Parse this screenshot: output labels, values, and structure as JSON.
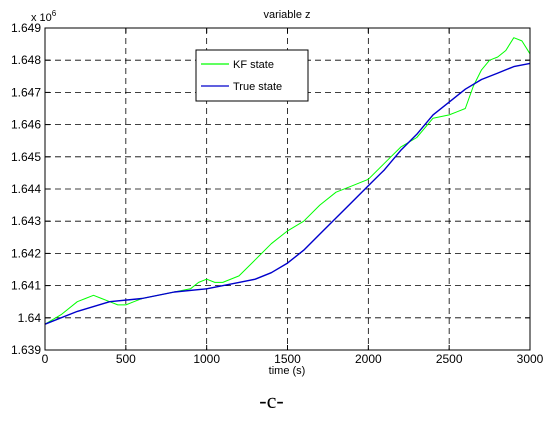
{
  "chart_data": {
    "type": "line",
    "title": "variable z",
    "xlabel": "time (s)",
    "ylabel": "",
    "y_multiplier": "x 10",
    "y_multiplier_exponent": "6",
    "xlim": [
      0,
      3000
    ],
    "ylim": [
      1.639,
      1.649
    ],
    "x_ticks": [
      0,
      500,
      1000,
      1500,
      2000,
      2500,
      3000
    ],
    "x_tick_labels": [
      "0",
      "500",
      "1000",
      "1500",
      "2000",
      "2500",
      "3000"
    ],
    "y_ticks": [
      1.639,
      1.64,
      1.641,
      1.642,
      1.643,
      1.644,
      1.645,
      1.646,
      1.647,
      1.648,
      1.649
    ],
    "y_tick_labels": [
      "1.639",
      "1.64",
      "1.641",
      "1.642",
      "1.643",
      "1.644",
      "1.645",
      "1.646",
      "1.647",
      "1.648",
      "1.649"
    ],
    "grid": true,
    "legend_position": "top-center",
    "series": [
      {
        "name": "KF state",
        "color": "#00ff00",
        "x": [
          0,
          100,
          200,
          250,
          300,
          350,
          400,
          450,
          500,
          550,
          600,
          700,
          800,
          900,
          950,
          1000,
          1050,
          1100,
          1200,
          1300,
          1400,
          1500,
          1600,
          1700,
          1800,
          1900,
          2000,
          2100,
          2200,
          2300,
          2400,
          2500,
          2550,
          2600,
          2650,
          2700,
          2750,
          2800,
          2850,
          2900,
          2950,
          3000
        ],
        "y": [
          1.6398,
          1.6401,
          1.6405,
          1.6406,
          1.6407,
          1.6406,
          1.6405,
          1.6404,
          1.6404,
          1.6405,
          1.6406,
          1.6407,
          1.6408,
          1.6409,
          1.6411,
          1.6412,
          1.6411,
          1.6411,
          1.6413,
          1.6418,
          1.6423,
          1.6427,
          1.643,
          1.6435,
          1.6439,
          1.6441,
          1.6443,
          1.6448,
          1.6453,
          1.6456,
          1.6462,
          1.6463,
          1.6464,
          1.6465,
          1.6472,
          1.6477,
          1.648,
          1.6481,
          1.6483,
          1.6487,
          1.6486,
          1.6482
        ]
      },
      {
        "name": "True state",
        "color": "#0000cc",
        "x": [
          0,
          200,
          400,
          600,
          800,
          1000,
          1200,
          1300,
          1400,
          1500,
          1600,
          1700,
          1800,
          1900,
          2000,
          2100,
          2200,
          2300,
          2400,
          2500,
          2600,
          2700,
          2800,
          2900,
          3000
        ],
        "y": [
          1.6398,
          1.6402,
          1.6405,
          1.6406,
          1.6408,
          1.6409,
          1.6411,
          1.6412,
          1.6414,
          1.6417,
          1.6421,
          1.6426,
          1.6431,
          1.6436,
          1.6441,
          1.6446,
          1.6452,
          1.6457,
          1.6463,
          1.6467,
          1.6471,
          1.6474,
          1.6476,
          1.6478,
          1.6479
        ]
      }
    ]
  },
  "panel_label": "-c-"
}
